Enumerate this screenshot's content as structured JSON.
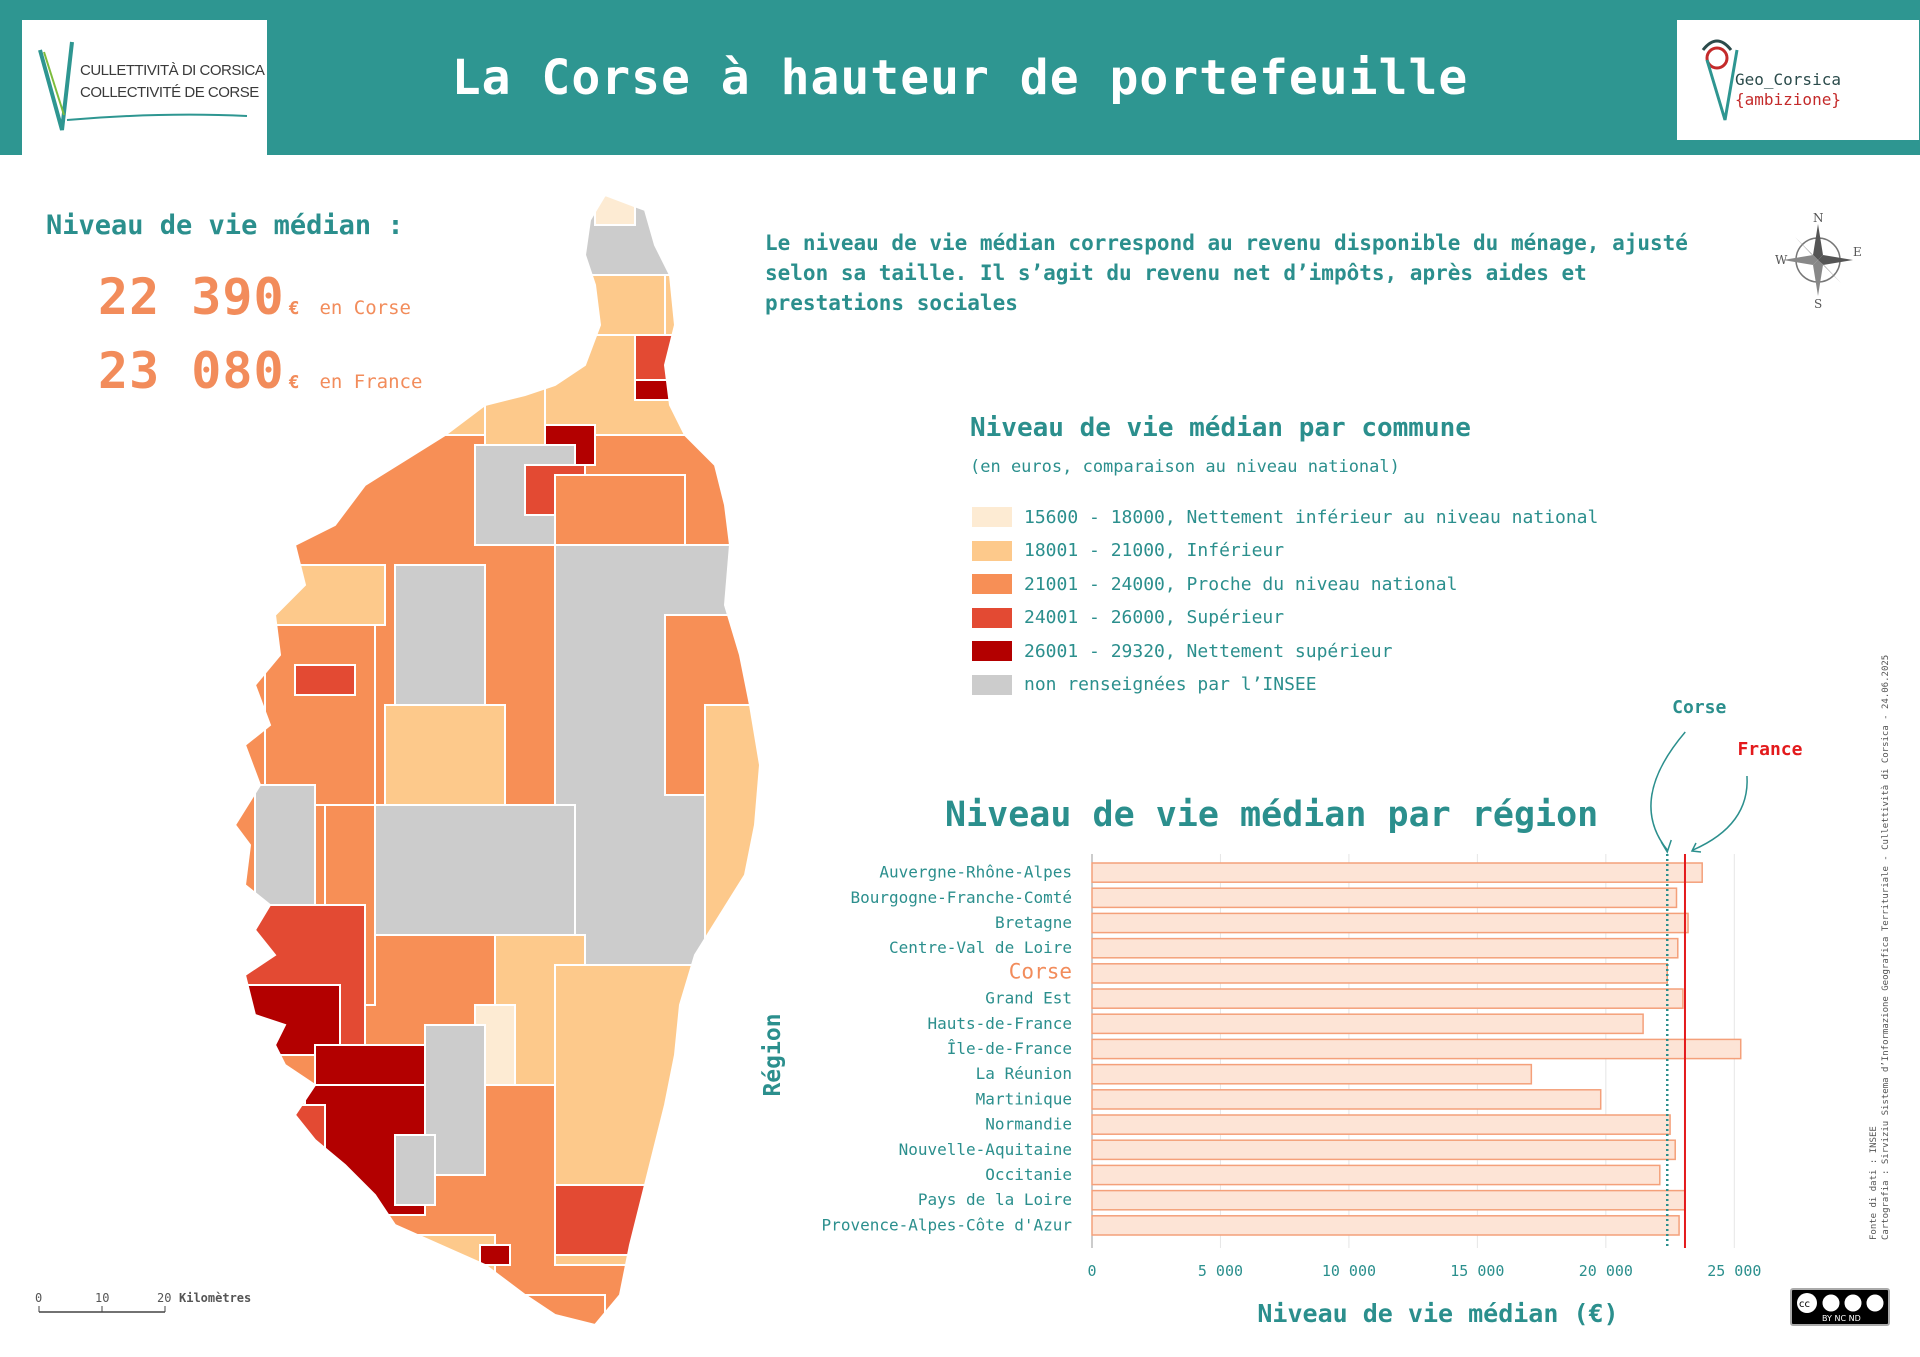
{
  "header": {
    "title": "La Corse à hauteur de portefeuille",
    "logo_left_line1": "CULLETTIVITÀ DI CORSICA",
    "logo_left_line2": "COLLECTIVITÉ DE CORSE",
    "logo_right_line1": "Geo_Corsica",
    "logo_right_line2": "{ambizione}"
  },
  "kpi": {
    "title": "Niveau de vie médian :",
    "corse_value": "22 390",
    "corse_unit": "€",
    "corse_label": "en Corse",
    "france_value": "23 080",
    "france_unit": "€",
    "france_label": "en France"
  },
  "description": "Le niveau de vie médian correspond au revenu disponible du ménage, ajusté selon sa taille. Il s’agit du revenu net d’impôts, après aides et prestations sociales",
  "compass": {
    "n": "N",
    "s": "S",
    "e": "E",
    "w": "W"
  },
  "legend": {
    "title": "Niveau de vie médian par commune",
    "subtitle": "(en euros, comparaison au niveau national)",
    "items": [
      {
        "label": "15600 - 18000, Nettement inférieur au niveau national",
        "color": "#fdebd3"
      },
      {
        "label": "18001 - 21000, Inférieur",
        "color": "#fdc98b"
      },
      {
        "label": "21001 - 24000, Proche du niveau national",
        "color": "#f78f56"
      },
      {
        "label": "24001 - 26000, Supérieur",
        "color": "#e34a33"
      },
      {
        "label": "26001 - 29320, Nettement supérieur",
        "color": "#b30000"
      },
      {
        "label": "non renseignées par l’INSEE",
        "color": "#cccccc"
      }
    ]
  },
  "scale_bar": {
    "ticks": [
      "0",
      "10",
      "20"
    ],
    "unit": "Kilomètres"
  },
  "chart_data": {
    "type": "bar",
    "orientation": "horizontal",
    "title": "Niveau de vie médian par région",
    "xlabel": "Niveau de vie médian (€)",
    "ylabel": "Région",
    "xlim": [
      0,
      26000
    ],
    "xticks": [
      "0",
      "5 000",
      "10 000",
      "15 000",
      "20 000",
      "25 000"
    ],
    "xtick_values": [
      0,
      5000,
      10000,
      15000,
      20000,
      25000
    ],
    "grid": true,
    "highlight_category": "Corse",
    "categories": [
      "Auvergne-Rhône-Alpes",
      "Bourgogne-Franche-Comté",
      "Bretagne",
      "Centre-Val de Loire",
      "Corse",
      "Grand Est",
      "Hauts-de-France",
      "Île-de-France",
      "La Réunion",
      "Martinique",
      "Normandie",
      "Nouvelle-Aquitaine",
      "Occitanie",
      "Pays de la Loire",
      "Provence-Alpes-Côte d'Azur"
    ],
    "values": [
      23750,
      22750,
      23200,
      22800,
      22390,
      23000,
      21450,
      25250,
      17100,
      19800,
      22500,
      22700,
      22100,
      23080,
      22850
    ],
    "reference_lines": [
      {
        "label": "Corse",
        "value": 22390,
        "style": "dotted",
        "color": "#2b8f8d"
      },
      {
        "label": "France",
        "value": 23080,
        "style": "solid",
        "color": "#e31a1c"
      }
    ],
    "bar_fill": "#fde4d6",
    "bar_stroke": "#f4a07a"
  },
  "credits": {
    "line1": "Fonte di dati : INSEE",
    "line2": "Cartografia : Sirviziu Sistema d’Informazione Geografica Territuriale - Cullettività di Corsica - 24.06.2025"
  },
  "license": "BY NC ND",
  "colors": {
    "header_bg": "#2e9691",
    "accent_teal": "#2b8f8d",
    "accent_orange": "#f28c5b",
    "france_red": "#e31a1c"
  }
}
